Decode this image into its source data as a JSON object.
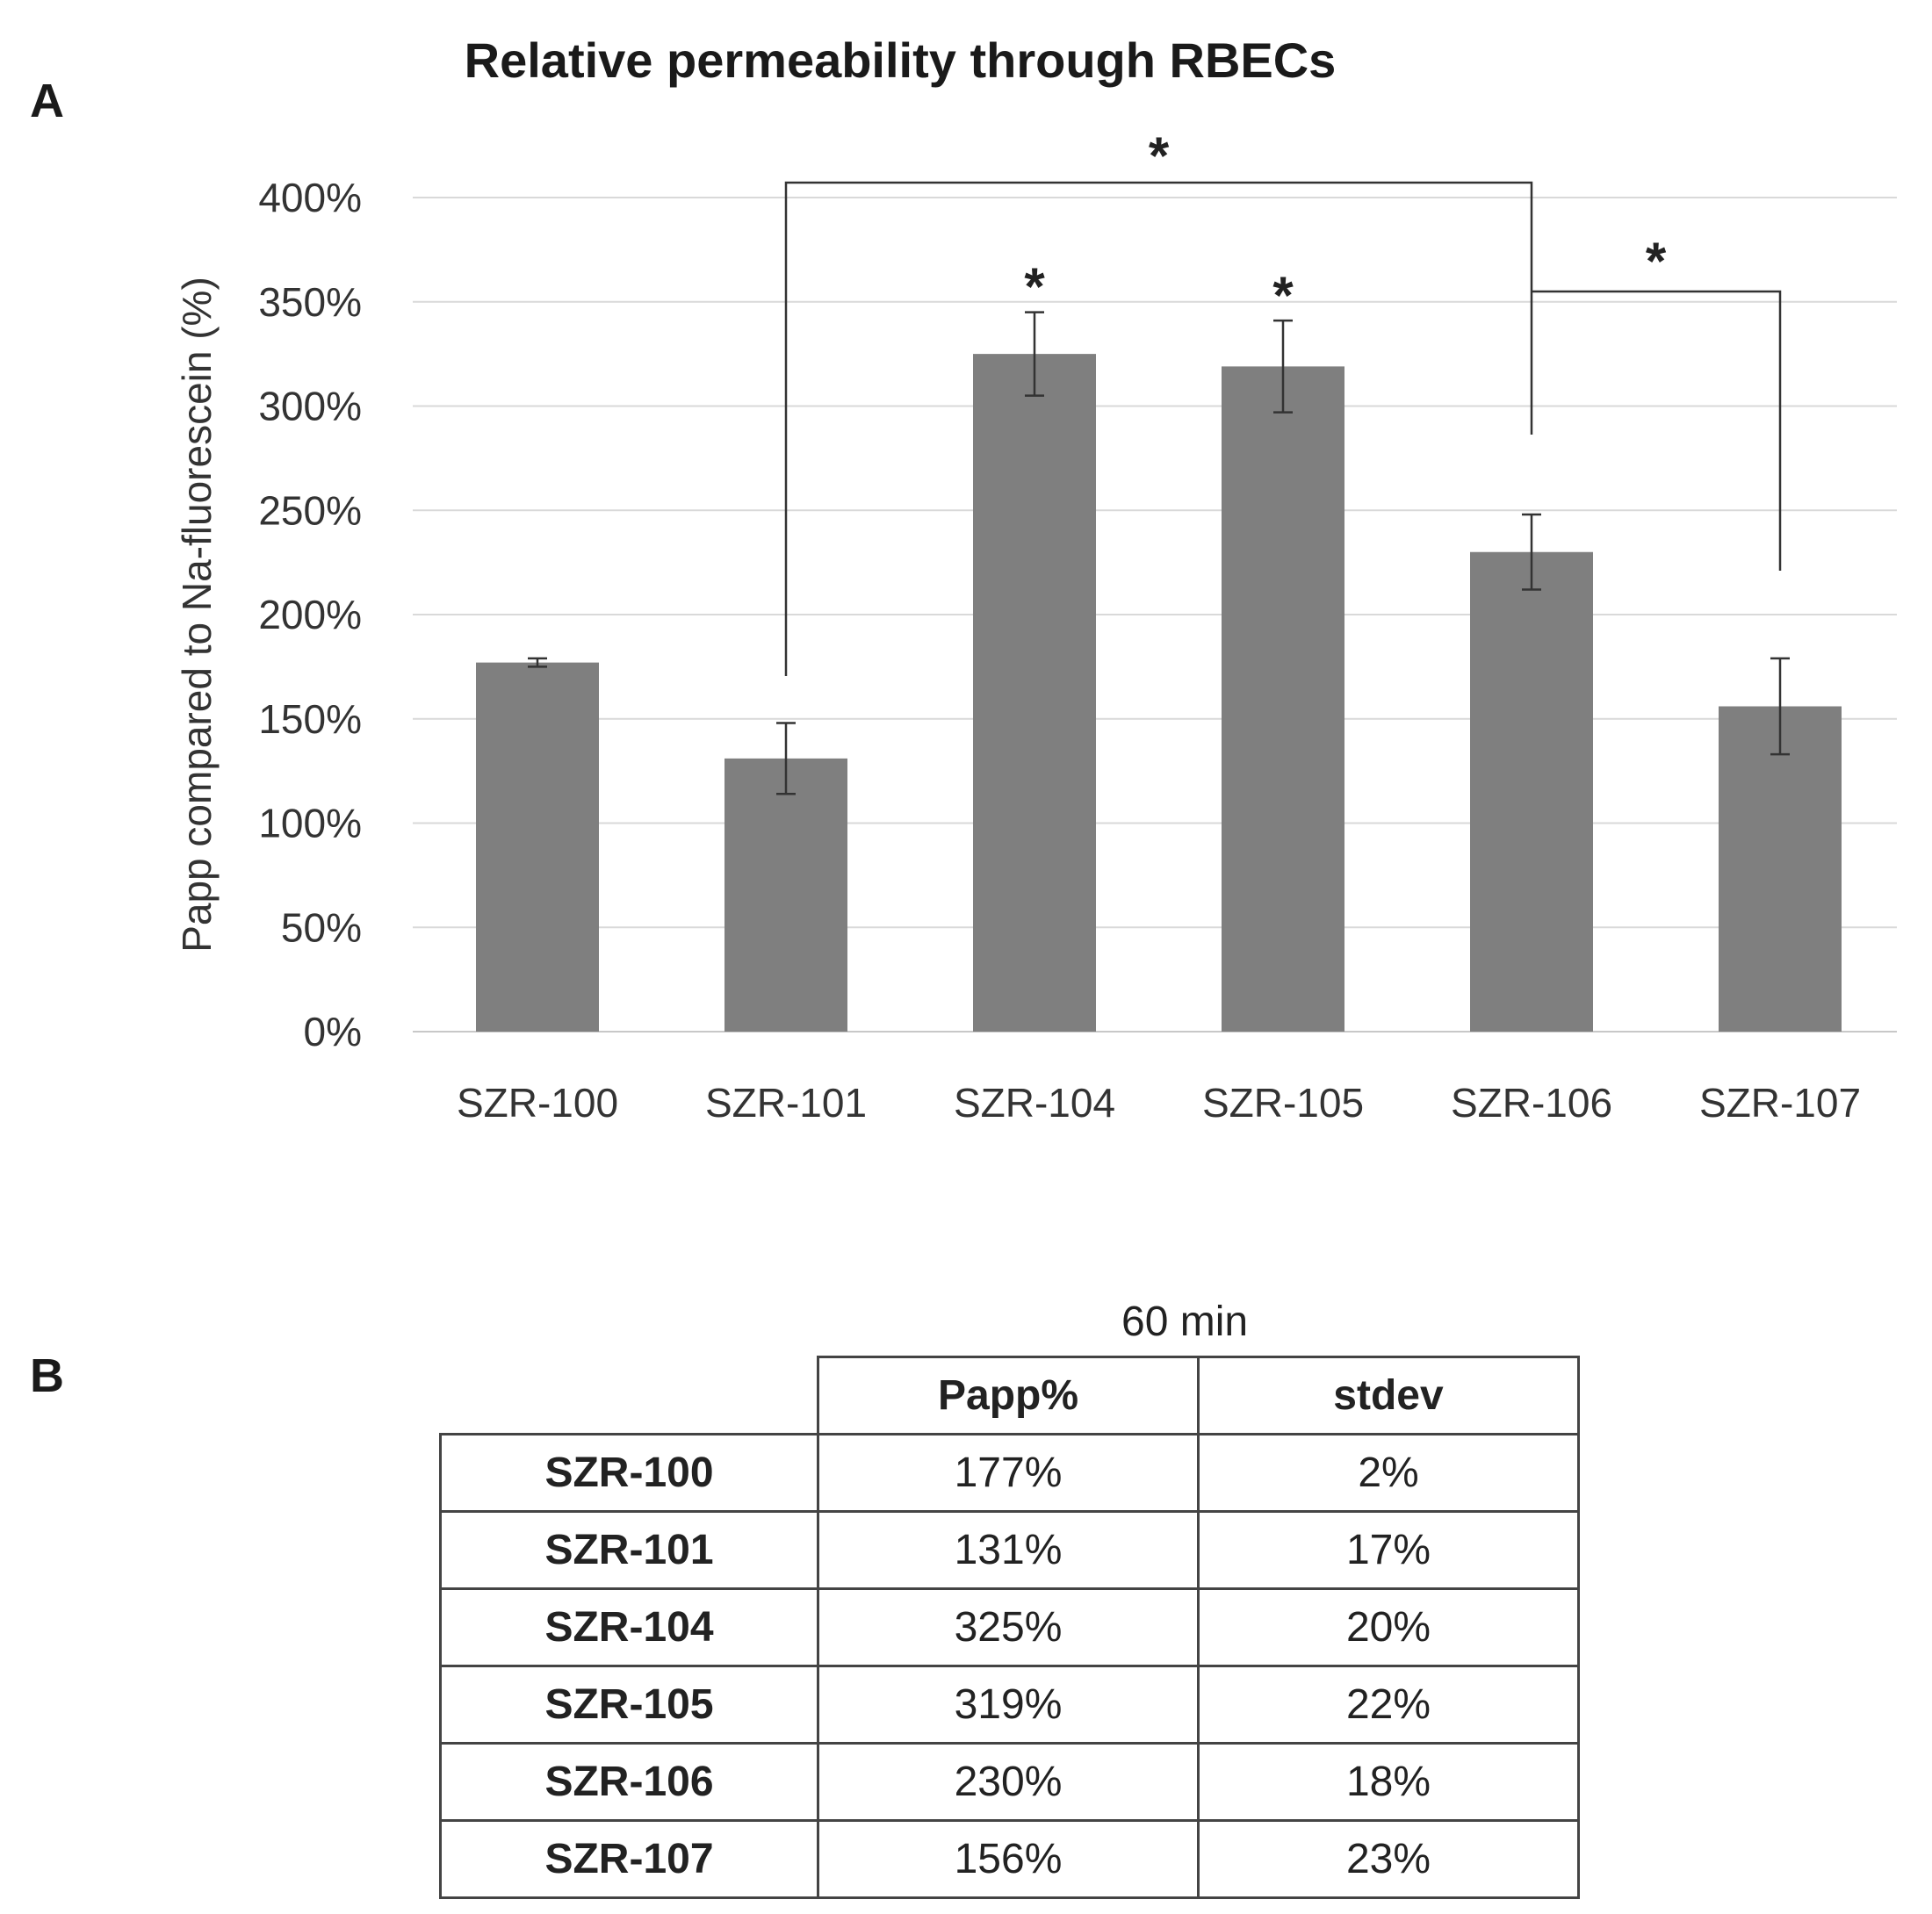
{
  "panel_labels": {
    "a": "A",
    "b": "B"
  },
  "chart_data": {
    "type": "bar",
    "title": "Relative permeability through RBECs",
    "ylabel": "Papp compared  to Na-fluorescein (%)",
    "xlabel": "",
    "categories": [
      "SZR-100",
      "SZR-101",
      "SZR-104",
      "SZR-105",
      "SZR-106",
      "SZR-107"
    ],
    "values": [
      177,
      131,
      325,
      319,
      230,
      156
    ],
    "errors": [
      2,
      17,
      20,
      22,
      18,
      23
    ],
    "ylim": [
      0,
      400
    ],
    "yticks": [
      0,
      50,
      100,
      150,
      200,
      250,
      300,
      350,
      400
    ],
    "ytick_labels": [
      "0%",
      "50%",
      "100%",
      "150%",
      "200%",
      "250%",
      "300%",
      "350%",
      "400%"
    ],
    "grid": true,
    "bar_color": "#7f7f7f",
    "significance_marks": [
      "*",
      "*"
    ],
    "significance_brackets": [
      {
        "from": "SZR-101",
        "to": "SZR-106",
        "label": "*"
      },
      {
        "from": "SZR-106",
        "to": "SZR-107",
        "label": "*"
      }
    ]
  },
  "table": {
    "caption": "60 min",
    "headers": [
      "",
      "Papp%",
      "stdev"
    ],
    "rows": [
      [
        "SZR-100",
        "177%",
        "2%"
      ],
      [
        "SZR-101",
        "131%",
        "17%"
      ],
      [
        "SZR-104",
        "325%",
        "20%"
      ],
      [
        "SZR-105",
        "319%",
        "22%"
      ],
      [
        "SZR-106",
        "230%",
        "18%"
      ],
      [
        "SZR-107",
        "156%",
        "23%"
      ]
    ]
  }
}
